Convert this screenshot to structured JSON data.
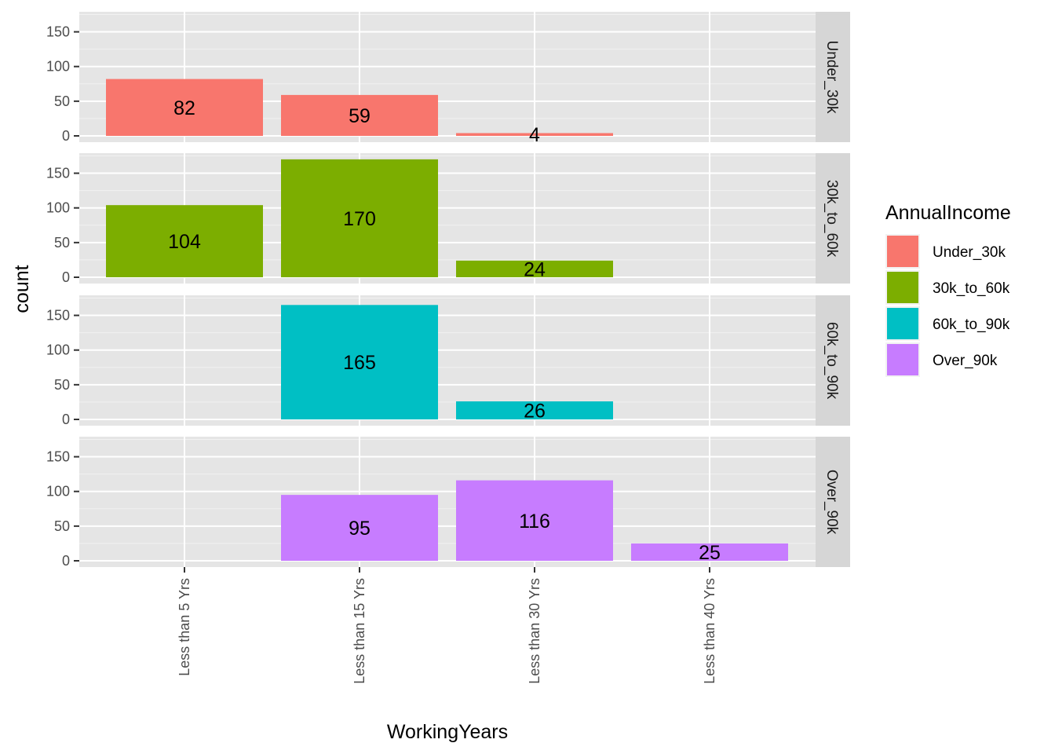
{
  "chart_data": {
    "type": "bar",
    "facet_by": "AnnualIncome",
    "categories": [
      "Less than 5 Yrs",
      "Less than 15 Yrs",
      "Less than 30 Yrs",
      "Less than 40 Yrs"
    ],
    "xlabel": "WorkingYears",
    "ylabel": "count",
    "ylim": [
      0,
      180
    ],
    "yticks": [
      0,
      50,
      100,
      150
    ],
    "grid": true,
    "legend": {
      "title": "AnnualIncome",
      "position": "right",
      "entries": [
        "Under_30k",
        "30k_to_60k",
        "60k_to_90k",
        "Over_90k"
      ]
    },
    "series": [
      {
        "name": "Under_30k",
        "color": "#F8766D",
        "values": [
          82,
          59,
          4,
          null
        ]
      },
      {
        "name": "30k_to_60k",
        "color": "#7CAE00",
        "values": [
          104,
          170,
          24,
          null
        ]
      },
      {
        "name": "60k_to_90k",
        "color": "#00BFC4",
        "values": [
          null,
          165,
          26,
          null
        ]
      },
      {
        "name": "Over_90k",
        "color": "#C77CFF",
        "values": [
          null,
          95,
          116,
          25
        ]
      }
    ]
  },
  "colors": {
    "panel_background": "#E5E5E5",
    "grid_major": "#FFFFFF",
    "strip_background": "#D6D6D6",
    "axis_text": "#4D4D4D"
  }
}
